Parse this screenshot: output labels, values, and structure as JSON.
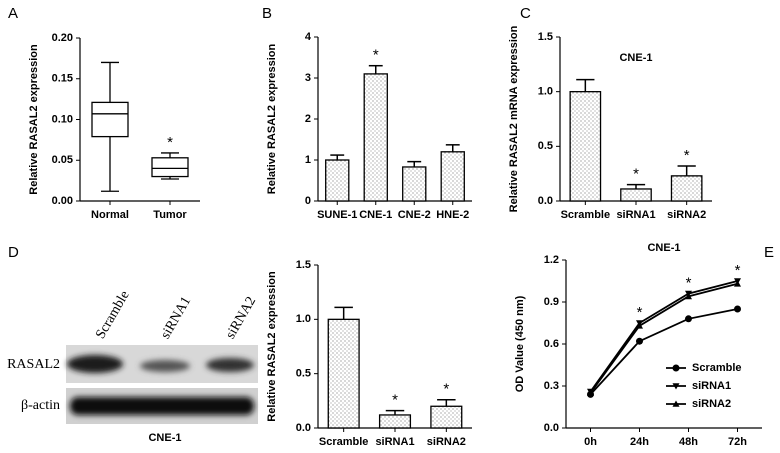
{
  "blot": {
    "panel": "D",
    "lanes": [
      "Scramble",
      "siRNA1",
      "siRNA2"
    ],
    "rows": [
      "RASAL2",
      "β-actin"
    ],
    "caption": "CNE-1"
  },
  "chart_data": [
    {
      "panel": "A",
      "type": "box",
      "ylabel": "Relative RASAL2 expression",
      "categories": [
        "Normal",
        "Tumor"
      ],
      "boxes": [
        {
          "min": 0.012,
          "q1": 0.079,
          "median": 0.107,
          "q3": 0.121,
          "max": 0.17
        },
        {
          "min": 0.027,
          "q1": 0.03,
          "median": 0.04,
          "q3": 0.053,
          "max": 0.059
        }
      ],
      "markers": [
        null,
        "*"
      ],
      "ylim": [
        0,
        0.2
      ],
      "yticks": [
        {
          "value": 0,
          "label": "0.00"
        },
        {
          "value": 0.05,
          "label": "0.05"
        },
        {
          "value": 0.1,
          "label": "0.10"
        },
        {
          "value": 0.15,
          "label": "0.15"
        },
        {
          "value": 0.2,
          "label": "0.20"
        }
      ]
    },
    {
      "panel": "B",
      "type": "bar",
      "ylabel": "Relative RASAL2 expression",
      "categories": [
        "SUNE-1",
        "CNE-1",
        "CNE-2",
        "HNE-2"
      ],
      "values": [
        1.0,
        3.1,
        0.83,
        1.2
      ],
      "errors": [
        0.12,
        0.2,
        0.13,
        0.17
      ],
      "markers": [
        null,
        "*",
        null,
        null
      ],
      "ylim": [
        0,
        4
      ],
      "yticks": [
        0,
        1,
        2,
        3,
        4
      ]
    },
    {
      "panel": "C",
      "type": "bar",
      "title": "CNE-1",
      "ylabel": "Relative RASAL2 mRNA expression",
      "categories": [
        "Scramble",
        "siRNA1",
        "siRNA2"
      ],
      "values": [
        1.0,
        0.11,
        0.23
      ],
      "errors": [
        0.11,
        0.04,
        0.09
      ],
      "markers": [
        null,
        "*",
        "*"
      ],
      "ylim": [
        0,
        1.5
      ],
      "yticks": [
        {
          "value": 0,
          "label": "0.0"
        },
        {
          "value": 0.5,
          "label": "0.5"
        },
        {
          "value": 1,
          "label": "1.0"
        },
        {
          "value": 1.5,
          "label": "1.5"
        }
      ]
    },
    {
      "type": "bar",
      "ylabel": "Relative RASAL2 expression",
      "categories": [
        "Scramble",
        "siRNA1",
        "siRNA2"
      ],
      "values": [
        1.0,
        0.12,
        0.2
      ],
      "errors": [
        0.11,
        0.04,
        0.06
      ],
      "markers": [
        null,
        "*",
        "*"
      ],
      "ylim": [
        0,
        1.5
      ],
      "yticks": [
        {
          "value": 0,
          "label": "0.0"
        },
        {
          "value": 0.5,
          "label": "0.5"
        },
        {
          "value": 1,
          "label": "1.0"
        },
        {
          "value": 1.5,
          "label": "1.5"
        }
      ]
    },
    {
      "panel": "E",
      "type": "line",
      "title": "CNE-1",
      "ylabel": "OD Value (450 nm)",
      "categories": [
        "0h",
        "24h",
        "48h",
        "72h"
      ],
      "series": [
        {
          "name": "Scramble",
          "marker": "circle",
          "color": "#000000",
          "values": [
            0.24,
            0.62,
            0.78,
            0.85
          ]
        },
        {
          "name": "siRNA1",
          "marker": "triangle-down",
          "color": "#000000",
          "values": [
            0.26,
            0.75,
            0.96,
            1.05
          ]
        },
        {
          "name": "siRNA2",
          "marker": "triangle-up",
          "color": "#000000",
          "values": [
            0.25,
            0.73,
            0.94,
            1.03
          ]
        }
      ],
      "markers": [
        null,
        "*",
        "*",
        "*"
      ],
      "legend": "lower right",
      "ylim": [
        0,
        1.2
      ],
      "yticks": [
        {
          "value": 0,
          "label": "0.0"
        },
        {
          "value": 0.3,
          "label": "0.3"
        },
        {
          "value": 0.6,
          "label": "0.6"
        },
        {
          "value": 0.9,
          "label": "0.9"
        },
        {
          "value": 1.2,
          "label": "1.2"
        }
      ]
    }
  ]
}
